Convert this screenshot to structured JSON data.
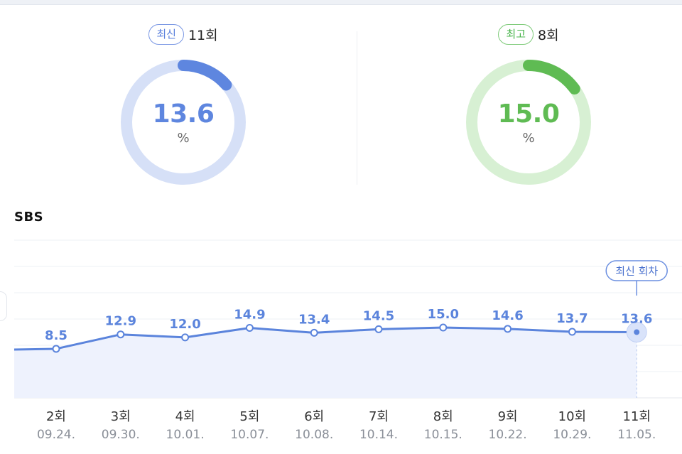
{
  "summary": {
    "latest": {
      "badge": "최신",
      "episode": "11회",
      "value": "13.6",
      "unit": "%",
      "color": "#5e86df",
      "track_color": "#d6e0f7",
      "fraction": 0.136
    },
    "best": {
      "badge": "최고",
      "episode": "8회",
      "value": "15.0",
      "unit": "%",
      "color": "#5fbb53",
      "track_color": "#d7f0d3",
      "fraction": 0.15
    }
  },
  "network": "SBS",
  "chart_data": {
    "type": "area",
    "categories": [
      "2회",
      "3회",
      "4회",
      "5회",
      "6회",
      "7회",
      "8회",
      "9회",
      "10회",
      "11회"
    ],
    "dates": [
      "09.24.",
      "09.30.",
      "10.01.",
      "10.07.",
      "10.08.",
      "10.14.",
      "10.15.",
      "10.22.",
      "10.29.",
      "11.05."
    ],
    "values": [
      8.5,
      12.9,
      12.0,
      14.9,
      13.4,
      14.5,
      15.0,
      14.6,
      13.7,
      13.6
    ],
    "labels": [
      "8.5",
      "12.9",
      "12.0",
      "14.9",
      "13.4",
      "14.5",
      "15.0",
      "14.6",
      "13.7",
      "13.6"
    ],
    "highlight": {
      "index": 9,
      "label": "최신 회차"
    },
    "grid": true,
    "color": "#5b84dc",
    "fill": "#eef2fd"
  }
}
